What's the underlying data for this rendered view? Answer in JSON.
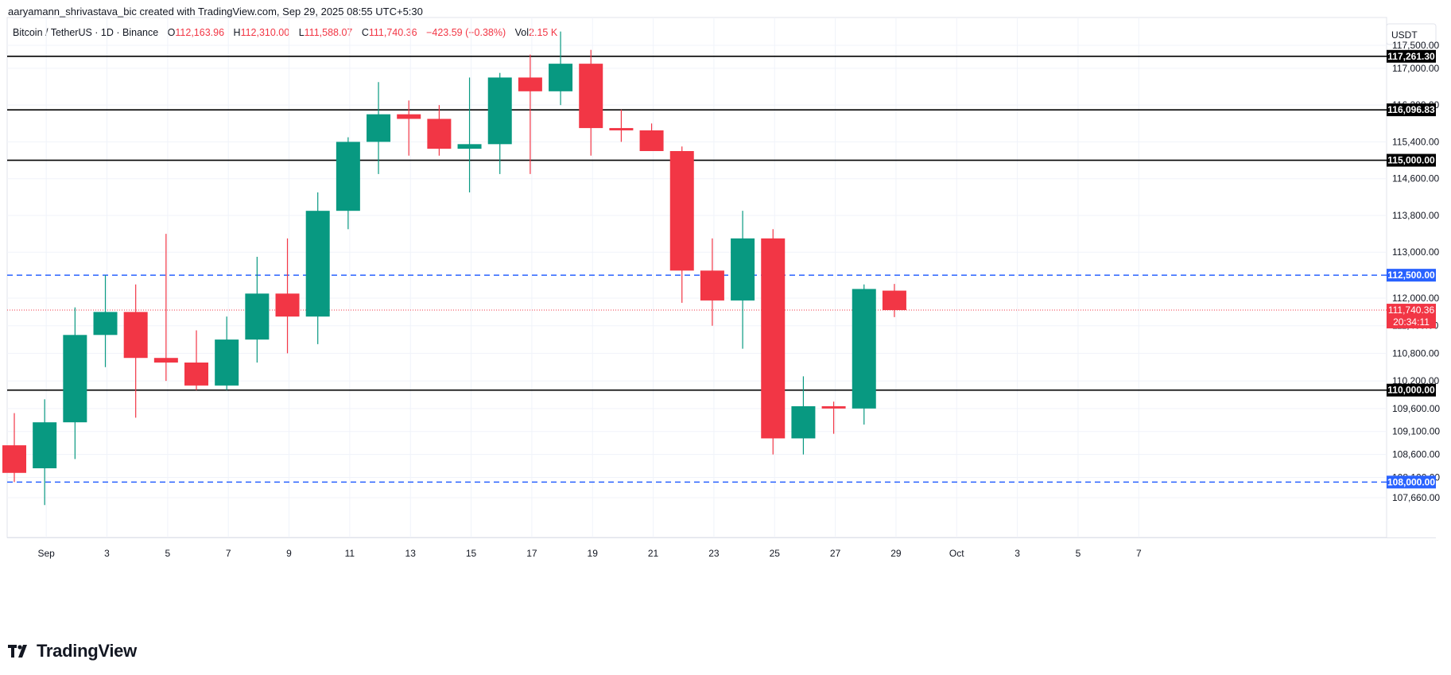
{
  "caption": "aaryamann_shrivastava_bic created with TradingView.com, Sep 29, 2025 08:55 UTC+5:30",
  "legend": {
    "symbol": "Bitcoin / TetherUS · 1D · Binance",
    "open_label": "O",
    "open": "112,163.96",
    "high_label": "H",
    "high": "112,310.00",
    "low_label": "L",
    "low": "111,588.07",
    "close_label": "C",
    "close": "111,740.36",
    "change": "−423.59 (−0.38%)",
    "vol_label": "Vol",
    "vol": "2.15 K"
  },
  "currency": "USDT",
  "brand": "TradingView",
  "countdown": "20:34:11",
  "colors": {
    "up": "#089981",
    "down": "#f23645",
    "blue_line": "#2962ff",
    "black_line": "#000000"
  },
  "chart_data": {
    "type": "candlestick",
    "x_labels": [
      "Sep",
      "3",
      "5",
      "7",
      "9",
      "11",
      "13",
      "15",
      "17",
      "19",
      "21",
      "23",
      "25",
      "27",
      "29",
      "Oct",
      "3",
      "5",
      "7"
    ],
    "y_ticks": [
      "117,500.00",
      "117,000.00",
      "116,200.00",
      "115,400.00",
      "114,600.00",
      "113,800.00",
      "113,000.00",
      "112,000.00",
      "111,400.00",
      "110,800.00",
      "110,200.00",
      "109,600.00",
      "109,100.00",
      "108,600.00",
      "108,100.00",
      "107,660.00"
    ],
    "y_tick_values": [
      117500,
      117000,
      116200,
      115400,
      114600,
      113800,
      113000,
      112000,
      111400,
      110800,
      110200,
      109600,
      109100,
      108600,
      108100,
      107660
    ],
    "ylim": [
      107200,
      118200
    ],
    "candles": [
      {
        "date": "Aug 31",
        "o": 108800,
        "h": 109500,
        "l": 108000,
        "c": 108200
      },
      {
        "date": "Sep 1",
        "o": 108300,
        "h": 109800,
        "l": 107500,
        "c": 109300
      },
      {
        "date": "Sep 2",
        "o": 109300,
        "h": 111800,
        "l": 108500,
        "c": 111200
      },
      {
        "date": "Sep 3",
        "o": 111200,
        "h": 112500,
        "l": 110500,
        "c": 111700
      },
      {
        "date": "Sep 4",
        "o": 111700,
        "h": 112300,
        "l": 109400,
        "c": 110700
      },
      {
        "date": "Sep 5",
        "o": 110700,
        "h": 113400,
        "l": 110200,
        "c": 110600
      },
      {
        "date": "Sep 6",
        "o": 110600,
        "h": 111300,
        "l": 110000,
        "c": 110100
      },
      {
        "date": "Sep 7",
        "o": 110100,
        "h": 111600,
        "l": 110000,
        "c": 111100
      },
      {
        "date": "Sep 8",
        "o": 111100,
        "h": 112900,
        "l": 110600,
        "c": 112100
      },
      {
        "date": "Sep 9",
        "o": 112100,
        "h": 113300,
        "l": 110800,
        "c": 111600
      },
      {
        "date": "Sep 10",
        "o": 111600,
        "h": 114300,
        "l": 111000,
        "c": 113900
      },
      {
        "date": "Sep 11",
        "o": 113900,
        "h": 115500,
        "l": 113500,
        "c": 115400
      },
      {
        "date": "Sep 12",
        "o": 115400,
        "h": 116700,
        "l": 114700,
        "c": 116000
      },
      {
        "date": "Sep 13",
        "o": 116000,
        "h": 116300,
        "l": 115100,
        "c": 115900
      },
      {
        "date": "Sep 14",
        "o": 115900,
        "h": 116200,
        "l": 115100,
        "c": 115250
      },
      {
        "date": "Sep 15",
        "o": 115250,
        "h": 116800,
        "l": 114300,
        "c": 115350
      },
      {
        "date": "Sep 16",
        "o": 115350,
        "h": 116900,
        "l": 114700,
        "c": 116800
      },
      {
        "date": "Sep 17",
        "o": 116800,
        "h": 117300,
        "l": 114700,
        "c": 116500
      },
      {
        "date": "Sep 18",
        "o": 116500,
        "h": 117800,
        "l": 116200,
        "c": 117100
      },
      {
        "date": "Sep 19",
        "o": 117100,
        "h": 117400,
        "l": 115100,
        "c": 115700
      },
      {
        "date": "Sep 20",
        "o": 115700,
        "h": 116100,
        "l": 115400,
        "c": 115650
      },
      {
        "date": "Sep 21",
        "o": 115650,
        "h": 115800,
        "l": 115200,
        "c": 115200
      },
      {
        "date": "Sep 22",
        "o": 115200,
        "h": 115300,
        "l": 111900,
        "c": 112600
      },
      {
        "date": "Sep 23",
        "o": 112600,
        "h": 113300,
        "l": 111400,
        "c": 111950
      },
      {
        "date": "Sep 24",
        "o": 111950,
        "h": 113900,
        "l": 110900,
        "c": 113300
      },
      {
        "date": "Sep 25",
        "o": 113300,
        "h": 113500,
        "l": 108600,
        "c": 108950
      },
      {
        "date": "Sep 26",
        "o": 108950,
        "h": 110300,
        "l": 108600,
        "c": 109650
      },
      {
        "date": "Sep 27",
        "o": 109650,
        "h": 109750,
        "l": 109050,
        "c": 109600
      },
      {
        "date": "Sep 28",
        "o": 109600,
        "h": 112300,
        "l": 109250,
        "c": 112200
      },
      {
        "date": "Sep 29",
        "o": 112163.96,
        "h": 112310,
        "l": 111588.07,
        "c": 111740.36
      }
    ],
    "horizontal_lines": [
      {
        "value": 117261.3,
        "label": "117,261.30",
        "style": "solid",
        "color": "#000000"
      },
      {
        "value": 116096.83,
        "label": "116,096.83",
        "style": "solid",
        "color": "#000000"
      },
      {
        "value": 115000.0,
        "label": "115,000.00",
        "style": "solid",
        "color": "#000000"
      },
      {
        "value": 112500.0,
        "label": "112,500.00",
        "style": "dashed",
        "color": "#2962ff"
      },
      {
        "value": 110000.0,
        "label": "110,000.00",
        "style": "solid",
        "color": "#000000"
      },
      {
        "value": 108000.0,
        "label": "108,000.00",
        "style": "dashed",
        "color": "#2962ff"
      }
    ],
    "last_price": {
      "value": 111740.36,
      "label": "111,740.36"
    }
  }
}
